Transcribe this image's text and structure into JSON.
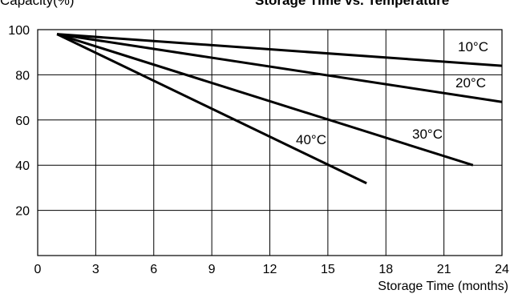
{
  "chart_data": {
    "type": "line",
    "title": "Storage Time vs. Temperature",
    "ylabel": "Capacity(%)",
    "xlabel": "Storage Time (months)",
    "xlim": [
      0,
      24
    ],
    "ylim": [
      0,
      100
    ],
    "xticks": [
      0,
      3,
      6,
      9,
      12,
      15,
      18,
      21,
      24
    ],
    "yticks": [
      20,
      40,
      60,
      80,
      100
    ],
    "grid": true,
    "legend": "none (series labeled inline)",
    "line_color": "#000000",
    "series": [
      {
        "name": "10°C",
        "points": [
          [
            1,
            98
          ],
          [
            24,
            84
          ]
        ]
      },
      {
        "name": "20°C",
        "points": [
          [
            1,
            98
          ],
          [
            24,
            68
          ]
        ]
      },
      {
        "name": "30°C",
        "points": [
          [
            1,
            98
          ],
          [
            22.5,
            40
          ]
        ]
      },
      {
        "name": "40°C",
        "points": [
          [
            1,
            98
          ],
          [
            17,
            32
          ]
        ]
      }
    ]
  }
}
